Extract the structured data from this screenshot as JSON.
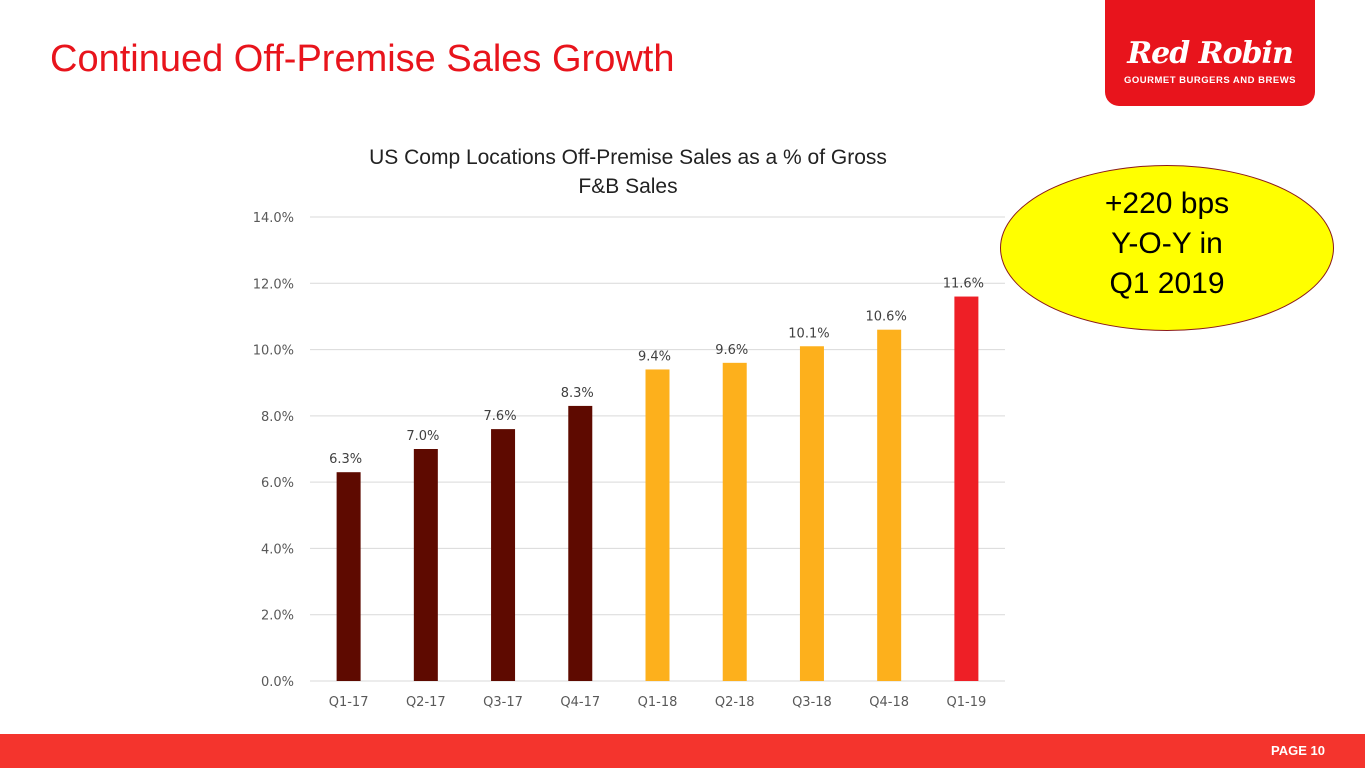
{
  "title": "Continued Off-Premise Sales Growth",
  "logo": {
    "brand": "Red Robin",
    "tagline": "GOURMET BURGERS AND BREWS"
  },
  "callout": {
    "lines": [
      "+220 bps",
      "Y-O-Y in",
      "Q1 2019"
    ]
  },
  "footer": {
    "page": "PAGE 10"
  },
  "colors": {
    "2017": "#5e0a00",
    "2018": "#fdb01c",
    "2019": "#ee1f26",
    "accent": "#e8141c"
  },
  "chart_data": {
    "type": "bar",
    "title_lines": [
      "US Comp Locations Off-Premise Sales as a % of Gross",
      "F&B Sales"
    ],
    "categories": [
      "Q1-17",
      "Q2-17",
      "Q3-17",
      "Q4-17",
      "Q1-18",
      "Q2-18",
      "Q3-18",
      "Q4-18",
      "Q1-19"
    ],
    "values": [
      6.3,
      7.0,
      7.6,
      8.3,
      9.4,
      9.6,
      10.1,
      10.6,
      11.6
    ],
    "labels": [
      "6.3%",
      "7.0%",
      "7.6%",
      "8.3%",
      "9.4%",
      "9.6%",
      "10.1%",
      "10.6%",
      "11.6%"
    ],
    "bar_colors": [
      "#5e0a00",
      "#5e0a00",
      "#5e0a00",
      "#5e0a00",
      "#fdb01c",
      "#fdb01c",
      "#fdb01c",
      "#fdb01c",
      "#ee1f26"
    ],
    "yticks": [
      "0.0%",
      "2.0%",
      "4.0%",
      "6.0%",
      "8.0%",
      "10.0%",
      "12.0%",
      "14.0%"
    ],
    "ylim": [
      0,
      14
    ],
    "grid": true
  }
}
